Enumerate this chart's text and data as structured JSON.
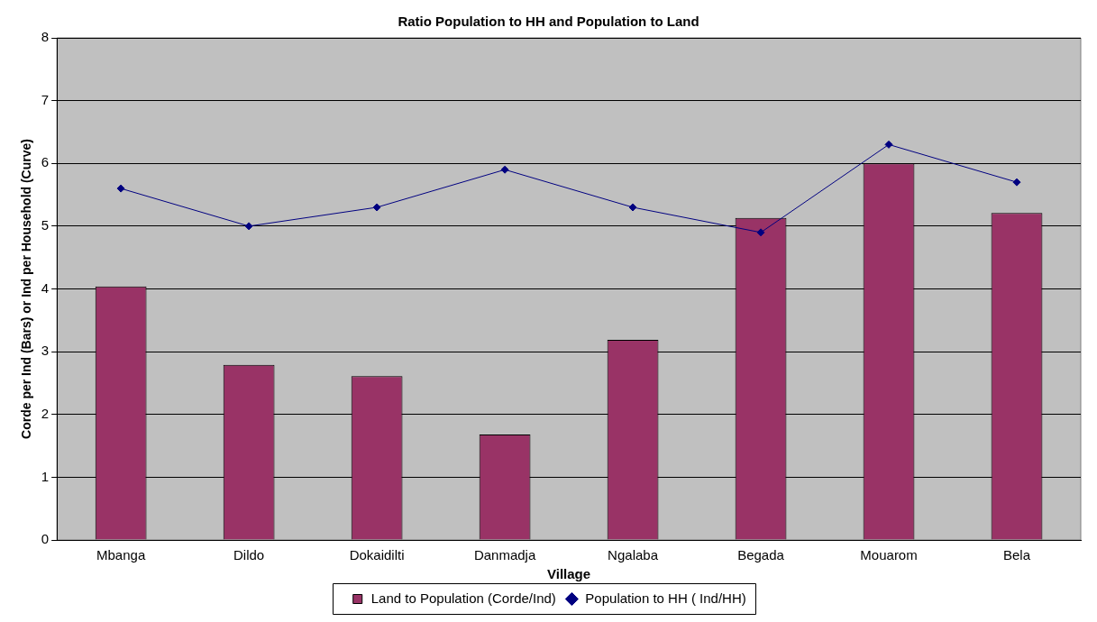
{
  "chart_data": {
    "type": "bar",
    "title": "Ratio Population to HH and Population to Land",
    "xlabel": "Village",
    "ylabel": "Corde per Ind (Bars) or Ind per Household (Curve)",
    "categories": [
      "Mbanga",
      "Dildo",
      "Dokaidilti",
      "Danmadja",
      "Ngalaba",
      "Begada",
      "Mouarom",
      "Bela"
    ],
    "series": [
      {
        "name": "Land to Population (Corde/Ind)",
        "color": "#993366",
        "values": [
          4.04,
          2.79,
          2.61,
          1.68,
          3.19,
          5.13,
          6.0,
          5.21
        ]
      },
      {
        "name": "Population to HH ( Ind/HH)",
        "type": "line",
        "color": "#000080",
        "values": [
          5.6,
          5.0,
          5.3,
          5.9,
          5.3,
          4.9,
          6.3,
          5.7
        ]
      }
    ],
    "ylim": [
      0,
      8
    ],
    "yticks": [
      0,
      1,
      2,
      3,
      4,
      5,
      6,
      7,
      8
    ],
    "grid": "y",
    "legend": "bottom",
    "marker": "diamond"
  }
}
